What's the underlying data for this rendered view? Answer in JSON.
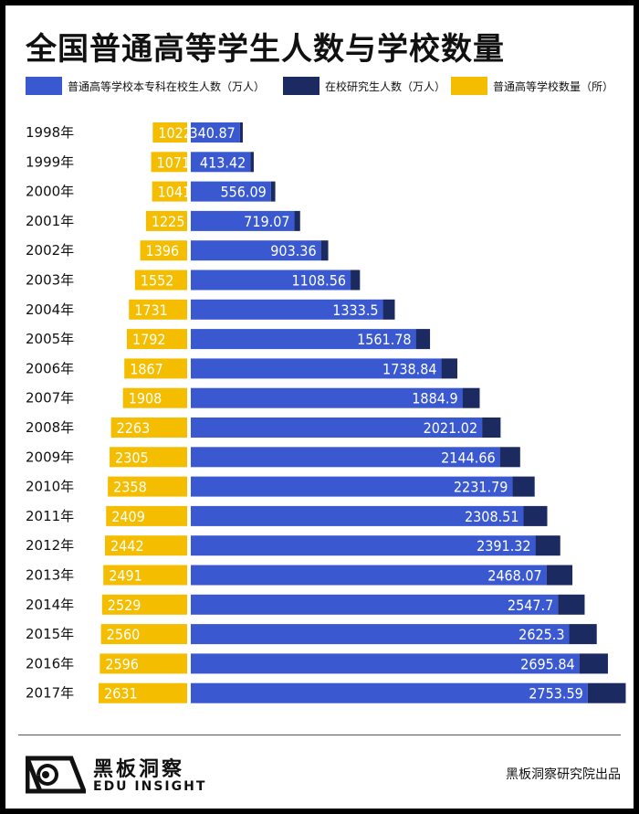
{
  "title": "全国普通高等学生人数与学校数量",
  "legend": [
    {
      "label": "普通高等学校本专科在校生人数（万人）",
      "color": "#3a59d1"
    },
    {
      "label": "在校研究生人数（万人）",
      "color": "#1b2a61"
    },
    {
      "label": "普通高等学校数量（所）",
      "color": "#f5bd00"
    }
  ],
  "footer": {
    "brand_cn": "黑板洞察",
    "brand_en": "EDU INSIGHT",
    "source": "黑板洞察研究院出品"
  },
  "chart_data": {
    "type": "bar",
    "title": "全国普通高等学生人数与学校数量",
    "categories": [
      "1998年",
      "1999年",
      "2000年",
      "2001年",
      "2002年",
      "2003年",
      "2004年",
      "2005年",
      "2006年",
      "2007年",
      "2008年",
      "2009年",
      "2010年",
      "2011年",
      "2012年",
      "2013年",
      "2014年",
      "2015年",
      "2016年",
      "2017年"
    ],
    "series": [
      {
        "name": "普通高等学校本专科在校生人数（万人）",
        "color": "#3a59d1",
        "stack": "right",
        "labeled": true,
        "values": [
          340.87,
          413.42,
          556.09,
          719.07,
          903.36,
          1108.56,
          1333.5,
          1561.78,
          1738.84,
          1884.9,
          2021.02,
          2144.66,
          2231.79,
          2308.51,
          2391.32,
          2468.07,
          2547.7,
          2625.3,
          2695.84,
          2753.59
        ],
        "labels": [
          "340.87",
          "413.42",
          "556.09",
          "719.07",
          "903.36",
          "1108.56",
          "1333.5",
          "1561.78",
          "1738.84",
          "1884.9",
          "2021.02",
          "2144.66",
          "2231.79",
          "2308.51",
          "2391.32",
          "2468.07",
          "2547.7",
          "2625.3",
          "2695.84",
          "2753.59"
        ]
      },
      {
        "name": "在校研究生人数（万人）",
        "color": "#1b2a61",
        "stack": "right",
        "labeled": false,
        "values": [
          19.89,
          23.35,
          30.12,
          39.33,
          50.1,
          65.13,
          81.99,
          97.86,
          110.47,
          119.5,
          128.3,
          140.49,
          153.84,
          164.58,
          171.98,
          179.4,
          184.77,
          191.14,
          198.11,
          263.96
        ]
      },
      {
        "name": "普通高等学校数量（所）",
        "color": "#f5bd00",
        "stack": "left",
        "labeled": true,
        "values": [
          1022,
          1071,
          1041,
          1225,
          1396,
          1552,
          1731,
          1792,
          1867,
          1908,
          2263,
          2305,
          2358,
          2409,
          2442,
          2491,
          2529,
          2560,
          2596,
          2631
        ],
        "labels": [
          "1022",
          "1071",
          "1041",
          "1225",
          "1396",
          "1552",
          "1731",
          "1792",
          "1867",
          "1908",
          "2263",
          "2305",
          "2358",
          "2409",
          "2442",
          "2491",
          "2529",
          "2560",
          "2596",
          "2631"
        ]
      }
    ]
  }
}
